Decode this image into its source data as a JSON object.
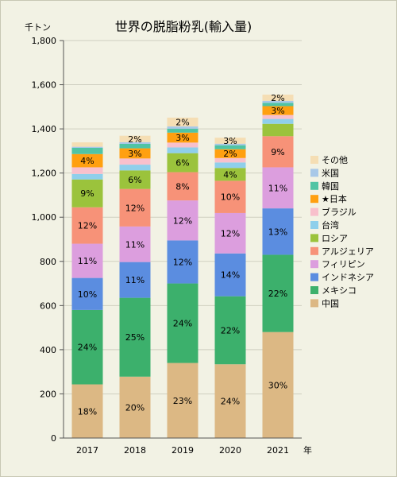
{
  "chart_data": {
    "type": "bar",
    "stacked": true,
    "title": "世界の脱脂粉乳(輸入量)",
    "ylabel": "千トン",
    "xlabel": "年",
    "ylim": [
      0,
      1800
    ],
    "yticks": [
      "0",
      "200",
      "400",
      "600",
      "800",
      "1,000",
      "1,200",
      "1,400",
      "1,600",
      "1,800"
    ],
    "categories": [
      "2017",
      "2018",
      "2019",
      "2020",
      "2021"
    ],
    "grid": true,
    "legend_position": "right",
    "series": [
      {
        "name": "中国",
        "color": "#dcb884",
        "values": [
          243,
          278,
          340,
          334,
          480
        ],
        "labels": [
          "18%",
          "20%",
          "23%",
          "24%",
          "30%"
        ]
      },
      {
        "name": "メキシコ",
        "color": "#3cb06c",
        "values": [
          337,
          357,
          360,
          308,
          350
        ],
        "labels": [
          "24%",
          "25%",
          "24%",
          "22%",
          "22%"
        ]
      },
      {
        "name": "インドネシア",
        "color": "#5b8de0",
        "values": [
          145,
          162,
          195,
          194,
          210
        ],
        "labels": [
          "10%",
          "11%",
          "12%",
          "14%",
          "13%"
        ]
      },
      {
        "name": "フィリピン",
        "color": "#dc9ede",
        "values": [
          155,
          161,
          181,
          183,
          186
        ],
        "labels": [
          "11%",
          "11%",
          "12%",
          "12%",
          "11%"
        ]
      },
      {
        "name": "アルジェリア",
        "color": "#f79278",
        "values": [
          165,
          170,
          128,
          146,
          141
        ],
        "labels": [
          "12%",
          "12%",
          "8%",
          "10%",
          "9%"
        ]
      },
      {
        "name": "ロシア",
        "color": "#9bc33c",
        "values": [
          126,
          84,
          86,
          58,
          56
        ],
        "labels": [
          "9%",
          "6%",
          "6%",
          "4%",
          ""
        ]
      },
      {
        "name": "台湾",
        "color": "#8fcfeb",
        "values": [
          25,
          26,
          26,
          25,
          22
        ],
        "labels": [
          "",
          "",
          "",
          "",
          ""
        ]
      },
      {
        "name": "ブラジル",
        "color": "#f8c0cc",
        "values": [
          30,
          28,
          22,
          20,
          18
        ],
        "labels": [
          "",
          "",
          "",
          "",
          ""
        ]
      },
      {
        "name": "★日本",
        "color": "#ffa010",
        "values": [
          60,
          46,
          45,
          40,
          40
        ],
        "labels": [
          "4%",
          "3%",
          "3%",
          "2%",
          "3%"
        ]
      },
      {
        "name": "韓国",
        "color": "#50c4a4",
        "values": [
          28,
          20,
          18,
          18,
          15
        ],
        "labels": [
          "",
          "",
          "",
          "",
          ""
        ]
      },
      {
        "name": "米国",
        "color": "#a8c8e8",
        "values": [
          5,
          8,
          10,
          7,
          9
        ],
        "labels": [
          "",
          "",
          "",
          "",
          ""
        ]
      },
      {
        "name": "その他",
        "color": "#f5deb4",
        "values": [
          20,
          29,
          40,
          27,
          28
        ],
        "labels": [
          "",
          "2%",
          "2%",
          "3%",
          "2%"
        ]
      }
    ]
  }
}
